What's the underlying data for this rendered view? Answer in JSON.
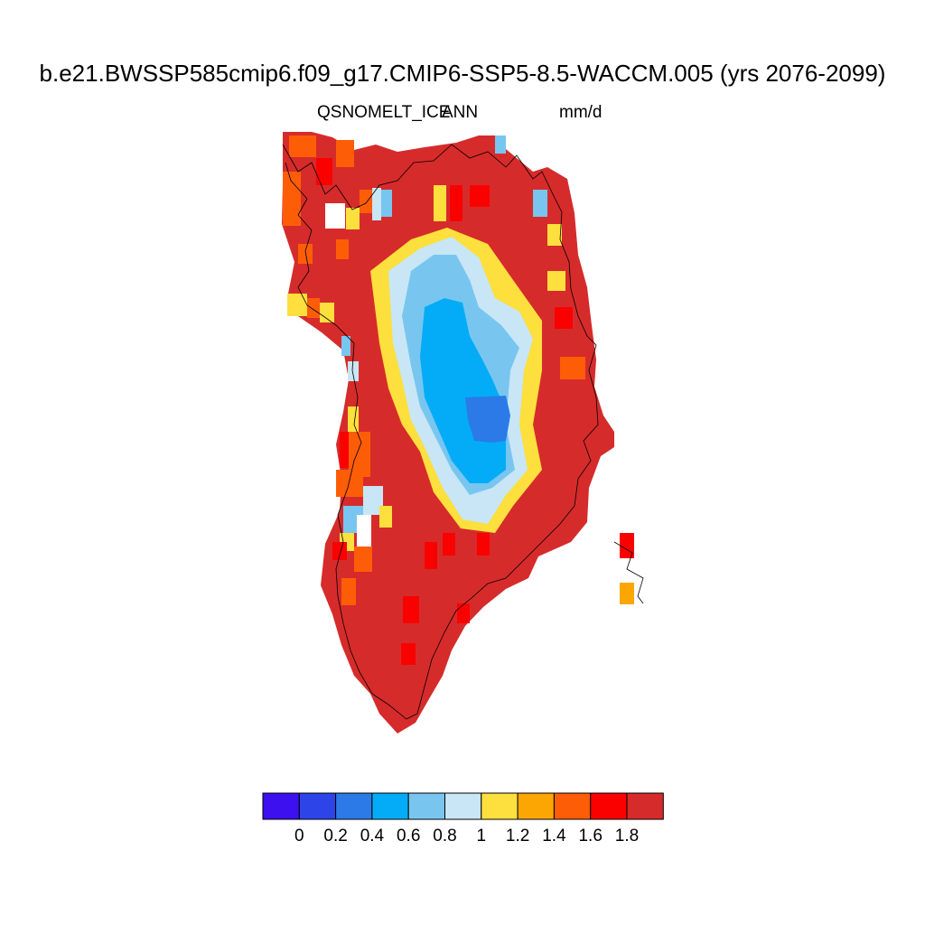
{
  "title": "b.e21.BWSSP585cmip6.f09_g17.CMIP6-SSP5-8.5-WACCM.005 (yrs 2076-2099)",
  "variable": "QSNOMELT_ICE",
  "stat": "ANN",
  "units": "mm/d",
  "colorbar": {
    "colors": [
      "#3d10f0",
      "#2c44e8",
      "#2b7ae8",
      "#04acf7",
      "#78c6ef",
      "#c8e6f6",
      "#fddf3d",
      "#fca604",
      "#fe5d07",
      "#fa0100",
      "#d62b2b"
    ],
    "labels": [
      "0",
      "0.2",
      "0.4",
      "0.6",
      "0.8",
      "1",
      "1.2",
      "1.4",
      "1.6",
      "1.8"
    ]
  },
  "map": {
    "region": "Greenland",
    "background_color": "#d62b2b",
    "coastline_color": "#000000"
  }
}
